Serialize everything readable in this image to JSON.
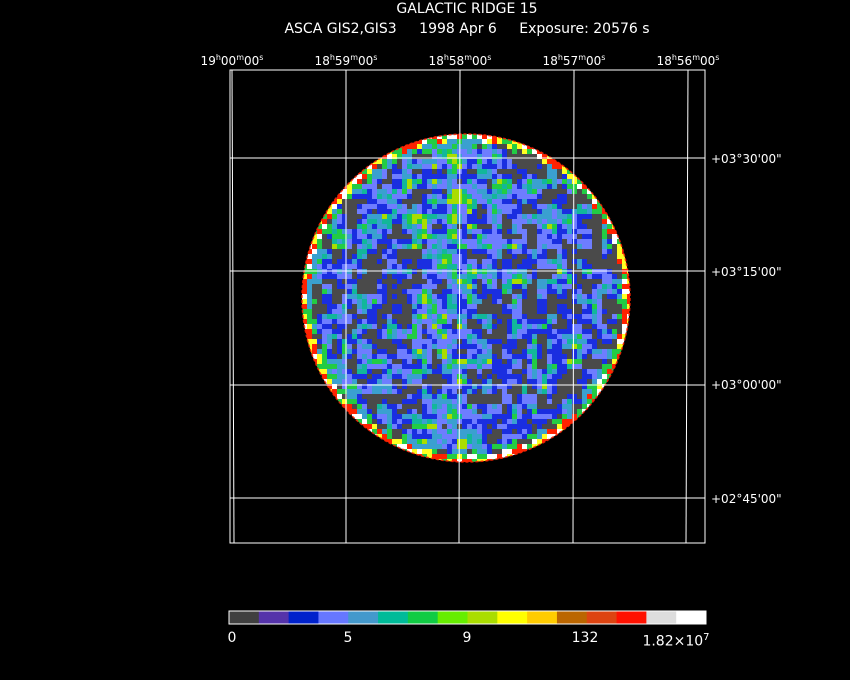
{
  "header": {
    "title": "GALACTIC RIDGE 15",
    "instrument": "ASCA GIS2,GIS3",
    "date": "1998 Apr  6",
    "exposure": "Exposure: 20576 s"
  },
  "axes": {
    "ra_labels": [
      "19h00m00s",
      "18h59m00s",
      "18h58m00s",
      "18h57m00s",
      "18h56m00s"
    ],
    "dec_labels": [
      "+03°30'00\"",
      "+03°15'00\"",
      "+03°00'00\"",
      "+02°45'00\""
    ]
  },
  "colorbar": {
    "colors": [
      "#404040",
      "#5533aa",
      "#0022cc",
      "#6677ff",
      "#4499cc",
      "#00bb99",
      "#11cc44",
      "#66ee00",
      "#aadd00",
      "#ffff00",
      "#ffcc00",
      "#bb6600",
      "#dd4411",
      "#ff1100",
      "#dddddd",
      "#ffffff"
    ],
    "tick_labels": [
      "0",
      "5",
      "9",
      "132",
      "1.82×10⁷"
    ]
  },
  "image": {
    "palette": {
      "background_gray": "#4a4a4a",
      "blue": "#1a2ee0",
      "light_blue": "#6e7dff",
      "cyan": "#3aa0d0",
      "teal": "#12b79a",
      "green": "#22cc44",
      "lime": "#aadd00",
      "yellow": "#ffff22",
      "red": "#ff2200",
      "white": "#ffffff"
    }
  }
}
